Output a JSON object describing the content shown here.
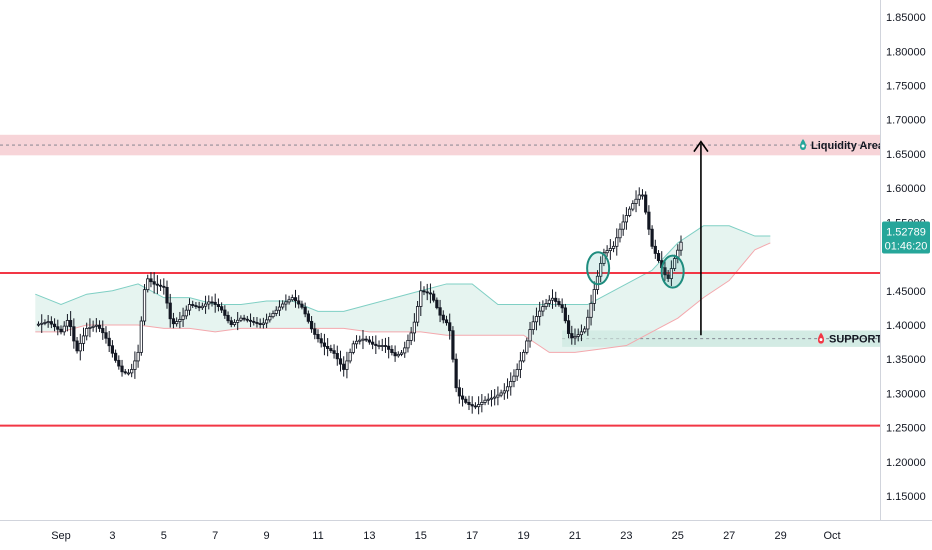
{
  "chart_data": {
    "type": "candlestick",
    "ylim": [
      1.115,
      1.875
    ],
    "y_ticks": [
      "1.85000",
      "1.80000",
      "1.75000",
      "1.70000",
      "1.65000",
      "1.60000",
      "1.55000",
      "1.45000",
      "1.40000",
      "1.35000",
      "1.30000",
      "1.25000",
      "1.20000",
      "1.15000"
    ],
    "x_ticks": [
      {
        "label": "Sep",
        "day": 1
      },
      {
        "label": "3",
        "day": 3
      },
      {
        "label": "5",
        "day": 5
      },
      {
        "label": "7",
        "day": 7
      },
      {
        "label": "9",
        "day": 9
      },
      {
        "label": "11",
        "day": 11
      },
      {
        "label": "13",
        "day": 13
      },
      {
        "label": "15",
        "day": 15
      },
      {
        "label": "17",
        "day": 17
      },
      {
        "label": "19",
        "day": 19
      },
      {
        "label": "21",
        "day": 21
      },
      {
        "label": "23",
        "day": 23
      },
      {
        "label": "25",
        "day": 25
      },
      {
        "label": "27",
        "day": 27
      },
      {
        "label": "29",
        "day": 29
      },
      {
        "label": "Oct",
        "day": 31
      }
    ],
    "current_price": {
      "value": "1.52789",
      "countdown": "01:46:20",
      "price": 1.52789,
      "color": "#26a69a"
    },
    "zones": [
      {
        "name": "Liquidity Area",
        "low": 1.648,
        "high": 1.678,
        "fill": "#f7d4d8",
        "line": 1.663
      },
      {
        "name": "SUPPORT",
        "low": 1.368,
        "high": 1.392,
        "fill": "#d3ebe4",
        "line": 1.38,
        "from_day": 20.5
      }
    ],
    "horizontal_lines": [
      {
        "value": 1.476,
        "color": "#f23645"
      },
      {
        "value": 1.253,
        "color": "#f23645"
      }
    ],
    "price_path": [
      [
        0,
        1.4
      ],
      [
        0.5,
        1.405
      ],
      [
        1,
        1.39
      ],
      [
        1.3,
        1.41
      ],
      [
        1.6,
        1.36
      ],
      [
        2,
        1.395
      ],
      [
        2.4,
        1.4
      ],
      [
        2.7,
        1.385
      ],
      [
        3.1,
        1.35
      ],
      [
        3.4,
        1.33
      ],
      [
        3.7,
        1.33
      ],
      [
        4,
        1.36
      ],
      [
        4.3,
        1.47
      ],
      [
        4.6,
        1.46
      ],
      [
        5,
        1.455
      ],
      [
        5.3,
        1.4
      ],
      [
        5.7,
        1.41
      ],
      [
        6,
        1.43
      ],
      [
        6.4,
        1.425
      ],
      [
        6.8,
        1.435
      ],
      [
        7.2,
        1.425
      ],
      [
        7.6,
        1.4
      ],
      [
        8,
        1.41
      ],
      [
        8.4,
        1.405
      ],
      [
        8.8,
        1.4
      ],
      [
        9.2,
        1.415
      ],
      [
        9.6,
        1.43
      ],
      [
        10,
        1.44
      ],
      [
        10.4,
        1.425
      ],
      [
        10.8,
        1.39
      ],
      [
        11.2,
        1.37
      ],
      [
        11.6,
        1.36
      ],
      [
        12,
        1.335
      ],
      [
        12.4,
        1.375
      ],
      [
        12.8,
        1.38
      ],
      [
        13.2,
        1.37
      ],
      [
        13.6,
        1.37
      ],
      [
        14,
        1.355
      ],
      [
        14.3,
        1.36
      ],
      [
        14.7,
        1.395
      ],
      [
        15,
        1.45
      ],
      [
        15.4,
        1.445
      ],
      [
        15.8,
        1.41
      ],
      [
        16.1,
        1.4
      ],
      [
        16.4,
        1.3
      ],
      [
        16.8,
        1.285
      ],
      [
        17.1,
        1.28
      ],
      [
        17.5,
        1.29
      ],
      [
        17.9,
        1.295
      ],
      [
        18.3,
        1.305
      ],
      [
        18.7,
        1.33
      ],
      [
        19,
        1.36
      ],
      [
        19.3,
        1.4
      ],
      [
        19.7,
        1.425
      ],
      [
        20.1,
        1.44
      ],
      [
        20.5,
        1.425
      ],
      [
        20.8,
        1.38
      ],
      [
        21.1,
        1.385
      ],
      [
        21.4,
        1.395
      ],
      [
        21.8,
        1.46
      ],
      [
        22.1,
        1.505
      ],
      [
        22.5,
        1.515
      ],
      [
        22.8,
        1.545
      ],
      [
        23.2,
        1.575
      ],
      [
        23.6,
        1.595
      ],
      [
        24,
        1.515
      ],
      [
        24.3,
        1.49
      ],
      [
        24.6,
        1.465
      ],
      [
        24.9,
        1.5
      ],
      [
        25.2,
        1.528
      ]
    ],
    "ichimoku": {
      "span_top": [
        [
          0,
          1.445
        ],
        [
          1,
          1.43
        ],
        [
          2,
          1.445
        ],
        [
          3,
          1.45
        ],
        [
          4,
          1.46
        ],
        [
          5,
          1.44
        ],
        [
          6,
          1.44
        ],
        [
          7,
          1.43
        ],
        [
          8,
          1.43
        ],
        [
          9,
          1.435
        ],
        [
          10,
          1.435
        ],
        [
          11,
          1.42
        ],
        [
          12,
          1.42
        ],
        [
          13,
          1.43
        ],
        [
          14,
          1.44
        ],
        [
          15,
          1.45
        ],
        [
          16,
          1.46
        ],
        [
          17,
          1.46
        ],
        [
          18,
          1.43
        ],
        [
          19,
          1.43
        ],
        [
          20,
          1.43
        ],
        [
          21,
          1.43
        ],
        [
          21.5,
          1.43
        ],
        [
          22,
          1.44
        ],
        [
          23,
          1.46
        ],
        [
          24,
          1.48
        ],
        [
          25,
          1.52
        ],
        [
          26,
          1.545
        ],
        [
          27,
          1.545
        ],
        [
          28,
          1.53
        ],
        [
          28.6,
          1.53
        ]
      ],
      "span_bottom": [
        [
          0,
          1.39
        ],
        [
          1,
          1.39
        ],
        [
          2,
          1.4
        ],
        [
          3,
          1.4
        ],
        [
          4,
          1.4
        ],
        [
          5,
          1.395
        ],
        [
          6,
          1.395
        ],
        [
          7,
          1.39
        ],
        [
          8,
          1.395
        ],
        [
          9,
          1.395
        ],
        [
          10,
          1.395
        ],
        [
          11,
          1.395
        ],
        [
          12,
          1.395
        ],
        [
          13,
          1.39
        ],
        [
          14,
          1.39
        ],
        [
          15,
          1.39
        ],
        [
          16,
          1.385
        ],
        [
          17,
          1.385
        ],
        [
          18,
          1.385
        ],
        [
          19,
          1.385
        ],
        [
          20,
          1.36
        ],
        [
          21,
          1.36
        ],
        [
          22,
          1.365
        ],
        [
          23,
          1.37
        ],
        [
          24,
          1.39
        ],
        [
          25,
          1.41
        ],
        [
          26,
          1.44
        ],
        [
          27,
          1.465
        ],
        [
          28,
          1.51
        ],
        [
          28.6,
          1.52
        ]
      ],
      "cloud_fill": "#d6ece6",
      "lagging_line_color": "#f4a8ad",
      "base_line_color": "#7fcfc4"
    },
    "markers": [
      {
        "day": 21.9,
        "price": 1.483
      },
      {
        "day": 24.8,
        "price": 1.478
      }
    ],
    "arrow": {
      "day": 25.9,
      "from": 1.385,
      "to": 1.668
    }
  }
}
